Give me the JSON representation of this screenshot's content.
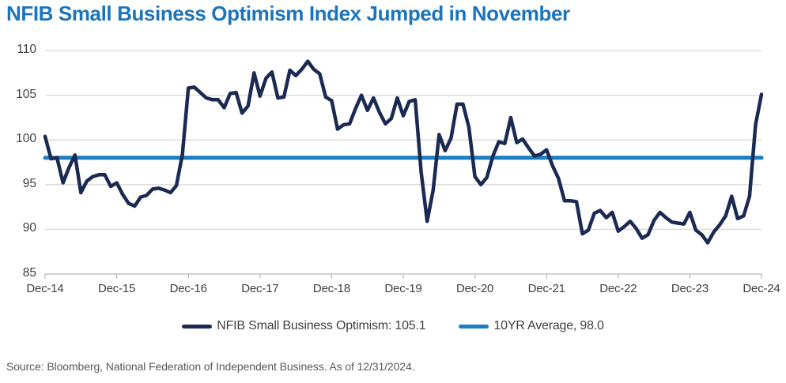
{
  "header": {
    "title": "NFIB Small Business Optimism Index Jumped in November"
  },
  "chart_data": {
    "type": "line",
    "title": "NFIB Small Business Optimism Index Jumped in November",
    "xlabel": "",
    "ylabel": "",
    "ylim": [
      85,
      110
    ],
    "yticks": [
      85,
      90,
      95,
      100,
      105,
      110
    ],
    "grid": "horizontal",
    "legend_position": "bottom",
    "x_labels": [
      "Dec-14",
      "Dec-15",
      "Dec-16",
      "Dec-17",
      "Dec-18",
      "Dec-19",
      "Dec-20",
      "Dec-21",
      "Dec-22",
      "Dec-23",
      "Dec-24"
    ],
    "series": [
      {
        "name": "NFIB Small Business Optimism",
        "color": "#1b2a52",
        "frequency": "monthly",
        "x_start": "Dec-2014",
        "x_end": "Dec-2024",
        "last_value": 105.1,
        "values": [
          100.4,
          97.9,
          98.0,
          95.2,
          96.9,
          98.3,
          94.1,
          95.4,
          95.9,
          96.1,
          96.1,
          94.8,
          95.2,
          93.9,
          92.9,
          92.6,
          93.6,
          93.8,
          94.5,
          94.6,
          94.4,
          94.1,
          94.9,
          98.4,
          105.8,
          105.9,
          105.3,
          104.7,
          104.5,
          104.5,
          103.6,
          105.2,
          105.3,
          103.0,
          103.8,
          107.5,
          104.9,
          106.9,
          107.6,
          104.7,
          104.8,
          107.8,
          107.2,
          107.9,
          108.8,
          107.9,
          107.4,
          104.8,
          104.4,
          101.2,
          101.7,
          101.8,
          103.5,
          105.0,
          103.3,
          104.7,
          103.1,
          101.8,
          102.4,
          104.7,
          102.7,
          104.3,
          104.5,
          96.4,
          90.9,
          94.4,
          100.6,
          98.8,
          100.2,
          104.0,
          104.0,
          101.4,
          95.9,
          95.0,
          95.8,
          98.2,
          99.8,
          99.6,
          102.5,
          99.7,
          100.1,
          99.1,
          98.2,
          98.4,
          98.9,
          97.1,
          95.7,
          93.2,
          93.2,
          93.1,
          89.5,
          89.9,
          91.8,
          92.1,
          91.3,
          91.9,
          89.8,
          90.3,
          90.9,
          90.1,
          89.0,
          89.4,
          91.0,
          91.9,
          91.3,
          90.8,
          90.7,
          90.6,
          91.9,
          89.9,
          89.4,
          88.5,
          89.7,
          90.5,
          91.5,
          93.7,
          91.2,
          91.5,
          93.7,
          101.7,
          105.1
        ]
      },
      {
        "name": "10YR Average",
        "color": "#1b7ec2",
        "style": "constant",
        "value": 98.0
      }
    ]
  },
  "legend": {
    "items": [
      {
        "label": "NFIB Small Business Optimism: 105.1",
        "color": "#1b2a52"
      },
      {
        "label": "10YR Average, 98.0",
        "color": "#1b7ec2"
      }
    ]
  },
  "footer": {
    "source": "Source: Bloomberg, National Federation of Independent Business. As of 12/31/2024."
  },
  "colors": {
    "title": "#1c74ba",
    "nfib_line": "#1b2a52",
    "average_line": "#1b7ec2",
    "grid": "#d9d9d9",
    "axis": "#b7b7b7",
    "tick_label": "#404040",
    "legend_text": "#404040",
    "source_text": "#595959"
  }
}
